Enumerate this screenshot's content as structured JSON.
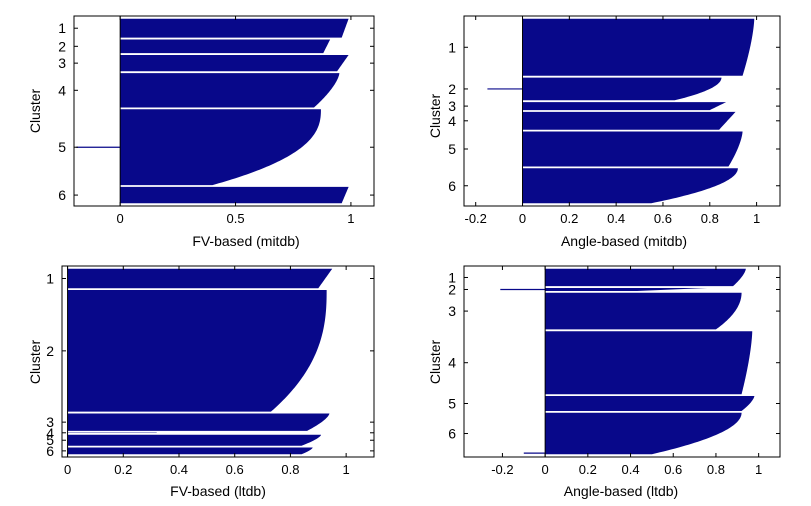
{
  "chart_data": [
    {
      "type": "silhouette",
      "id": "p1",
      "xlabel": "FV-based (mitdb)",
      "ylabel": "Cluster",
      "xlim": [
        -0.2,
        1.1
      ],
      "xticks": [
        0,
        0.5,
        1
      ],
      "xtick_labels": [
        "0",
        "0.5",
        "1"
      ],
      "n_points": 120,
      "color": "#08088a",
      "clusters": [
        {
          "label": "1",
          "n": 8,
          "max": 0.99,
          "min": 0.96,
          "shape": 1.0
        },
        {
          "label": "2",
          "n": 6,
          "max": 0.91,
          "min": 0.88,
          "shape": 1.0
        },
        {
          "label": "3",
          "n": 7,
          "max": 0.99,
          "min": 0.94,
          "shape": 1.0
        },
        {
          "label": "4",
          "n": 14,
          "max": 0.95,
          "min": 0.84,
          "shape": 1.5
        },
        {
          "label": "5",
          "n": 30,
          "max": 0.87,
          "min": 0.4,
          "shape": 2.5
        },
        {
          "label": "6",
          "n": 7,
          "max": 0.99,
          "min": 0.96,
          "shape": 1.0
        }
      ],
      "negatives": [
        {
          "cluster": "5",
          "value": -0.19
        }
      ]
    },
    {
      "type": "silhouette",
      "id": "p2",
      "xlabel": "Angle-based (mitdb)",
      "ylabel": "Cluster",
      "xlim": [
        -0.25,
        1.1
      ],
      "xticks": [
        -0.2,
        0,
        0.2,
        0.4,
        0.6,
        0.8,
        1
      ],
      "xtick_labels": [
        "-0.2",
        "0",
        "0.2",
        "0.4",
        "0.6",
        "0.8",
        "1"
      ],
      "n_points": 120,
      "color": "#08088a",
      "clusters": [
        {
          "label": "1",
          "n": 24,
          "max": 0.99,
          "min": 0.94,
          "shape": 1.5
        },
        {
          "label": "2",
          "n": 10,
          "max": 0.85,
          "min": 0.65,
          "shape": 2.0
        },
        {
          "label": "3",
          "n": 4,
          "max": 0.87,
          "min": 0.8,
          "shape": 1.0
        },
        {
          "label": "4",
          "n": 8,
          "max": 0.91,
          "min": 0.84,
          "shape": 1.0
        },
        {
          "label": "5",
          "n": 15,
          "max": 0.94,
          "min": 0.88,
          "shape": 1.5
        },
        {
          "label": "6",
          "n": 15,
          "max": 0.92,
          "min": 0.55,
          "shape": 2.0
        }
      ],
      "negatives": [
        {
          "cluster": "2",
          "value": -0.15
        }
      ]
    },
    {
      "type": "silhouette",
      "id": "p3",
      "xlabel": "FV-based (ltdb)",
      "ylabel": "Cluster",
      "xlim": [
        -0.02,
        1.1
      ],
      "xticks": [
        0,
        0.2,
        0.4,
        0.6,
        0.8,
        1
      ],
      "xtick_labels": [
        "0",
        "0.2",
        "0.4",
        "0.6",
        "0.8",
        "1"
      ],
      "n_points": 120,
      "color": "#08088a",
      "clusters": [
        {
          "label": "1",
          "n": 10,
          "max": 0.95,
          "min": 0.9,
          "shape": 1.0
        },
        {
          "label": "2",
          "n": 58,
          "max": 0.93,
          "min": 0.73,
          "shape": 2.5
        },
        {
          "label": "3",
          "n": 9,
          "max": 0.94,
          "min": 0.86,
          "shape": 1.5
        },
        {
          "label": "4",
          "n": 1,
          "max": 0.32,
          "min": 0.32,
          "shape": 1.0
        },
        {
          "label": "5",
          "n": 6,
          "max": 0.91,
          "min": 0.84,
          "shape": 1.5
        },
        {
          "label": "6",
          "n": 4,
          "max": 0.88,
          "min": 0.84,
          "shape": 1.5
        }
      ],
      "negatives": []
    },
    {
      "type": "silhouette",
      "id": "p4",
      "xlabel": "Angle-based (ltdb)",
      "ylabel": "Cluster",
      "xlim": [
        -0.38,
        1.1
      ],
      "xticks": [
        -0.2,
        0,
        0.2,
        0.4,
        0.6,
        0.8,
        1
      ],
      "xtick_labels": [
        "-0.2",
        "0",
        "0.2",
        "0.4",
        "0.6",
        "0.8",
        "1"
      ],
      "n_points": 120,
      "color": "#08088a",
      "clusters": [
        {
          "label": "1",
          "n": 8,
          "max": 0.94,
          "min": 0.88,
          "shape": 1.5
        },
        {
          "label": "2",
          "n": 2,
          "max": 0.76,
          "min": 0.43,
          "shape": 1.0
        },
        {
          "label": "3",
          "n": 16,
          "max": 0.92,
          "min": 0.8,
          "shape": 2.0
        },
        {
          "label": "4",
          "n": 27,
          "max": 0.97,
          "min": 0.92,
          "shape": 1.5
        },
        {
          "label": "5",
          "n": 7,
          "max": 0.98,
          "min": 0.92,
          "shape": 1.5
        },
        {
          "label": "6",
          "n": 18,
          "max": 0.92,
          "min": 0.5,
          "shape": 2.0
        }
      ],
      "negatives": [
        {
          "cluster": "2",
          "value": -0.21
        },
        {
          "cluster": "6",
          "value": -0.1
        }
      ]
    }
  ]
}
